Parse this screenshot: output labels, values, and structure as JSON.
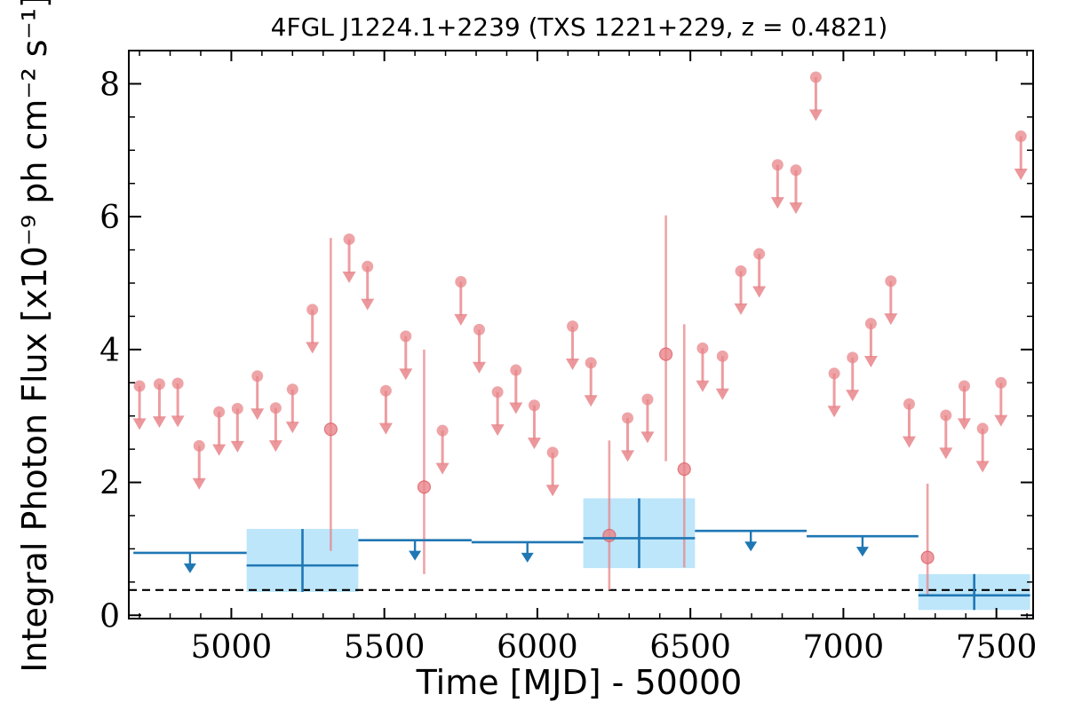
{
  "chart_data": {
    "type": "scatter",
    "title": "4FGL J1224.1+2239 (TXS 1221+229, z = 0.4821)",
    "xlabel": "Time [MJD] - 50000",
    "ylabel": "Integral Photon Flux [x10⁻⁹ ph cm⁻² s⁻¹]",
    "xlim": [
      4665,
      7620
    ],
    "ylim": [
      -0.05,
      8.5
    ],
    "x_ticks": [
      5000,
      5500,
      6000,
      6500,
      7000,
      7500
    ],
    "y_ticks": [
      0,
      2,
      4,
      6,
      8
    ],
    "x_tick_labels": [
      "5000",
      "5500",
      "6000",
      "6500",
      "7000",
      "7500"
    ],
    "y_tick_labels": [
      "0",
      "2",
      "4",
      "6",
      "8"
    ],
    "baseline": 0.38,
    "colors": {
      "fine_points": "#e8858a",
      "coarse_line": "#1f77b4",
      "coarse_box": "#bde6fa"
    },
    "fine_upper_limits": [
      {
        "x": 4700,
        "y": 3.45
      },
      {
        "x": 4765,
        "y": 3.48
      },
      {
        "x": 4825,
        "y": 3.49
      },
      {
        "x": 4895,
        "y": 2.55
      },
      {
        "x": 4960,
        "y": 3.06
      },
      {
        "x": 5020,
        "y": 3.11
      },
      {
        "x": 5085,
        "y": 3.6
      },
      {
        "x": 5145,
        "y": 3.12
      },
      {
        "x": 5200,
        "y": 3.4
      },
      {
        "x": 5265,
        "y": 4.6
      },
      {
        "x": 5385,
        "y": 5.66
      },
      {
        "x": 5445,
        "y": 5.25
      },
      {
        "x": 5505,
        "y": 3.38
      },
      {
        "x": 5570,
        "y": 4.2
      },
      {
        "x": 5690,
        "y": 2.78
      },
      {
        "x": 5750,
        "y": 5.02
      },
      {
        "x": 5810,
        "y": 4.3
      },
      {
        "x": 5870,
        "y": 3.36
      },
      {
        "x": 5930,
        "y": 3.69
      },
      {
        "x": 5990,
        "y": 3.16
      },
      {
        "x": 6050,
        "y": 2.45
      },
      {
        "x": 6115,
        "y": 4.35
      },
      {
        "x": 6175,
        "y": 3.8
      },
      {
        "x": 6295,
        "y": 2.97
      },
      {
        "x": 6360,
        "y": 3.25
      },
      {
        "x": 6540,
        "y": 4.02
      },
      {
        "x": 6605,
        "y": 3.9
      },
      {
        "x": 6665,
        "y": 5.18
      },
      {
        "x": 6725,
        "y": 5.44
      },
      {
        "x": 6785,
        "y": 6.78
      },
      {
        "x": 6845,
        "y": 6.7
      },
      {
        "x": 6910,
        "y": 8.1
      },
      {
        "x": 6970,
        "y": 3.64
      },
      {
        "x": 7030,
        "y": 3.88
      },
      {
        "x": 7090,
        "y": 4.39
      },
      {
        "x": 7155,
        "y": 5.03
      },
      {
        "x": 7215,
        "y": 3.18
      },
      {
        "x": 7335,
        "y": 3.01
      },
      {
        "x": 7395,
        "y": 3.45
      },
      {
        "x": 7455,
        "y": 2.81
      },
      {
        "x": 7515,
        "y": 3.5
      },
      {
        "x": 7580,
        "y": 7.21
      }
    ],
    "fine_detections": [
      {
        "x": 5325,
        "y": 2.8,
        "ylow": 0.97,
        "yhigh": 5.68
      },
      {
        "x": 5630,
        "y": 1.93,
        "ylow": 0.62,
        "yhigh": 4.0
      },
      {
        "x": 6235,
        "y": 1.2,
        "ylow": 0.38,
        "yhigh": 2.63
      },
      {
        "x": 6420,
        "y": 3.93,
        "ylow": 2.32,
        "yhigh": 6.02
      },
      {
        "x": 6480,
        "y": 2.2,
        "ylow": 0.72,
        "yhigh": 4.38
      },
      {
        "x": 7275,
        "y": 0.87,
        "ylow": 0.3,
        "yhigh": 1.98
      }
    ],
    "coarse_upper_limits": [
      {
        "x0": 4680,
        "x1": 5050,
        "y": 0.94
      },
      {
        "x0": 5415,
        "x1": 5785,
        "y": 1.13
      },
      {
        "x0": 5785,
        "x1": 6150,
        "y": 1.1
      },
      {
        "x0": 6515,
        "x1": 6880,
        "y": 1.27
      },
      {
        "x0": 6880,
        "x1": 7245,
        "y": 1.19
      }
    ],
    "coarse_detections": [
      {
        "x0": 5050,
        "x1": 5415,
        "y": 0.75,
        "ylow": 0.35,
        "yhigh": 1.3
      },
      {
        "x0": 6150,
        "x1": 6515,
        "y": 1.16,
        "ylow": 0.71,
        "yhigh": 1.76
      },
      {
        "x0": 7245,
        "x1": 7610,
        "y": 0.3,
        "ylow": 0.08,
        "yhigh": 0.62
      }
    ]
  }
}
